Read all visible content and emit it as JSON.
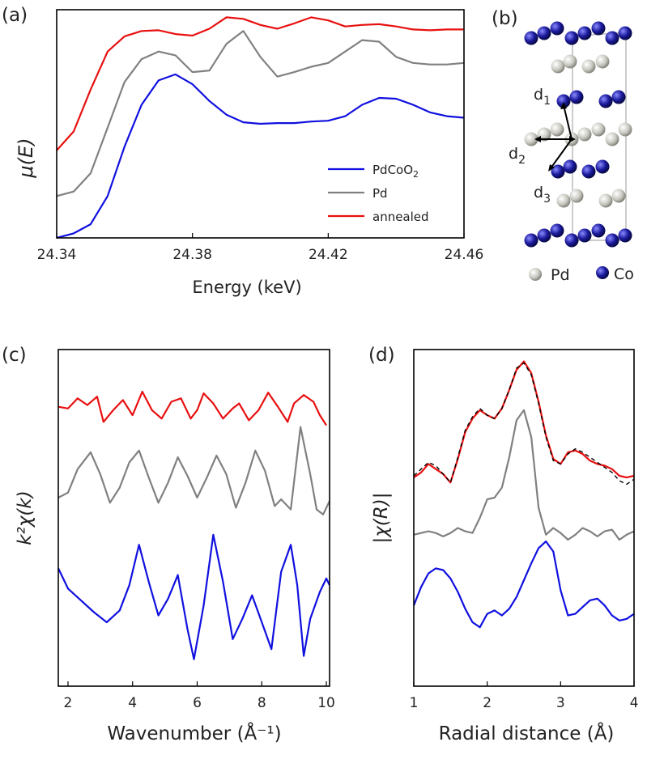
{
  "colors": {
    "PdCoO2": "#1010e0",
    "Pd": "#808080",
    "annealed": "#e81010",
    "fit": "#000000",
    "pd_atom": "#c8c8c0",
    "co_atom": "#1a1a8c"
  },
  "panels": {
    "a": {
      "tag": "(a)"
    },
    "b": {
      "tag": "(b)"
    },
    "c": {
      "tag": "(c)"
    },
    "d": {
      "tag": "(d)"
    }
  },
  "legend": {
    "items": [
      {
        "key": "PdCoO2",
        "label": "PdCoO",
        "sub": "2"
      },
      {
        "key": "Pd",
        "label": "Pd",
        "sub": ""
      },
      {
        "key": "annealed",
        "label": "annealed",
        "sub": ""
      }
    ]
  },
  "structure": {
    "labels": {
      "d1": "d",
      "d1_sub": "1",
      "d2": "d",
      "d2_sub": "2",
      "d3": "d",
      "d3_sub": "3"
    },
    "legend_pd": "Pd",
    "legend_co": "Co"
  },
  "chart_data": [
    {
      "panel": "a",
      "type": "line",
      "xlabel": "Energy (keV)",
      "ylabel": "μ(E)",
      "xlim": [
        24.34,
        24.46
      ],
      "ylim": [
        0,
        3.0
      ],
      "xticks": [
        24.34,
        24.38,
        24.42,
        24.46
      ],
      "xtick_labels": [
        "24.34",
        "24.38",
        "24.42",
        "24.46"
      ],
      "grid": false,
      "legend_position": "lower-right",
      "series": [
        {
          "name": "PdCoO2",
          "key": "PdCoO2",
          "x": [
            24.34,
            24.345,
            24.35,
            24.355,
            24.36,
            24.365,
            24.37,
            24.375,
            24.38,
            24.385,
            24.39,
            24.395,
            24.4,
            24.405,
            24.41,
            24.415,
            24.42,
            24.425,
            24.43,
            24.435,
            24.44,
            24.445,
            24.45,
            24.455,
            24.46
          ],
          "y": [
            0.0,
            0.06,
            0.18,
            0.55,
            1.2,
            1.75,
            2.07,
            2.15,
            2.02,
            1.8,
            1.62,
            1.52,
            1.5,
            1.51,
            1.51,
            1.53,
            1.54,
            1.6,
            1.75,
            1.84,
            1.83,
            1.75,
            1.65,
            1.6,
            1.58
          ]
        },
        {
          "name": "Pd",
          "key": "Pd",
          "x": [
            24.34,
            24.345,
            24.35,
            24.355,
            24.36,
            24.365,
            24.37,
            24.375,
            24.38,
            24.385,
            24.39,
            24.395,
            24.4,
            24.405,
            24.41,
            24.415,
            24.42,
            24.425,
            24.43,
            24.435,
            24.44,
            24.445,
            24.45,
            24.455,
            24.46
          ],
          "y": [
            0.55,
            0.61,
            0.85,
            1.45,
            2.05,
            2.35,
            2.45,
            2.4,
            2.18,
            2.2,
            2.55,
            2.72,
            2.38,
            2.12,
            2.18,
            2.25,
            2.3,
            2.45,
            2.6,
            2.58,
            2.38,
            2.3,
            2.28,
            2.28,
            2.3
          ]
        },
        {
          "name": "annealed",
          "key": "annealed",
          "x": [
            24.34,
            24.345,
            24.35,
            24.355,
            24.36,
            24.365,
            24.37,
            24.375,
            24.38,
            24.385,
            24.39,
            24.395,
            24.4,
            24.405,
            24.41,
            24.415,
            24.42,
            24.425,
            24.43,
            24.435,
            24.44,
            24.445,
            24.45,
            24.455,
            24.46
          ],
          "y": [
            1.15,
            1.4,
            1.95,
            2.45,
            2.65,
            2.72,
            2.73,
            2.68,
            2.66,
            2.75,
            2.9,
            2.88,
            2.8,
            2.75,
            2.82,
            2.9,
            2.86,
            2.78,
            2.8,
            2.81,
            2.78,
            2.74,
            2.73,
            2.74,
            2.74
          ]
        }
      ]
    },
    {
      "panel": "c",
      "type": "line",
      "xlabel": "Wavenumber (Å⁻¹)",
      "ylabel": "k²χ(k)",
      "xlim": [
        1.7,
        10.1
      ],
      "ylim": [
        0,
        10
      ],
      "xticks": [
        2,
        4,
        6,
        8,
        10
      ],
      "xtick_labels": [
        "2",
        "4",
        "6",
        "8",
        "10"
      ],
      "grid": false,
      "series": [
        {
          "key": "annealed",
          "x": [
            1.7,
            2.0,
            2.3,
            2.6,
            2.9,
            3.1,
            3.4,
            3.7,
            4.0,
            4.3,
            4.6,
            4.9,
            5.2,
            5.5,
            5.8,
            6.0,
            6.2,
            6.5,
            6.8,
            7.1,
            7.3,
            7.6,
            7.9,
            8.2,
            8.5,
            8.8,
            9.0,
            9.3,
            9.6,
            9.8,
            10.0
          ],
          "y": [
            8.3,
            8.25,
            8.55,
            8.35,
            8.6,
            7.85,
            8.2,
            8.5,
            8.05,
            8.75,
            8.2,
            7.95,
            8.45,
            8.55,
            7.95,
            8.2,
            8.7,
            8.4,
            7.95,
            8.25,
            8.4,
            7.9,
            8.2,
            8.72,
            8.3,
            7.85,
            8.4,
            8.65,
            8.45,
            8.05,
            7.75
          ]
        },
        {
          "key": "Pd",
          "x": [
            1.7,
            2.0,
            2.3,
            2.7,
            3.0,
            3.3,
            3.6,
            3.9,
            4.2,
            4.5,
            4.8,
            5.1,
            5.4,
            5.7,
            6.0,
            6.3,
            6.6,
            6.9,
            7.2,
            7.5,
            7.8,
            8.1,
            8.4,
            8.6,
            8.9,
            9.2,
            9.5,
            9.7,
            9.9,
            10.1
          ],
          "y": [
            5.6,
            5.75,
            6.45,
            6.95,
            6.3,
            5.45,
            5.9,
            6.65,
            7.0,
            6.2,
            5.45,
            6.05,
            6.8,
            6.25,
            5.6,
            6.2,
            6.85,
            6.3,
            5.3,
            6.05,
            7.0,
            6.4,
            5.35,
            5.55,
            5.25,
            7.7,
            6.3,
            5.25,
            5.1,
            5.5
          ]
        },
        {
          "key": "PdCoO2",
          "x": [
            1.7,
            2.0,
            2.4,
            2.8,
            3.2,
            3.6,
            3.9,
            4.2,
            4.5,
            4.8,
            5.1,
            5.4,
            5.7,
            5.9,
            6.2,
            6.5,
            6.8,
            7.1,
            7.4,
            7.7,
            8.0,
            8.3,
            8.6,
            8.9,
            9.1,
            9.3,
            9.5,
            9.8,
            10.0,
            10.1
          ],
          "y": [
            3.5,
            2.9,
            2.55,
            2.2,
            1.9,
            2.25,
            3.0,
            4.2,
            3.1,
            2.1,
            2.6,
            3.3,
            1.7,
            0.8,
            2.4,
            4.5,
            3.1,
            1.4,
            2.0,
            2.7,
            1.9,
            1.1,
            3.4,
            4.2,
            3.0,
            0.9,
            2.0,
            2.8,
            3.2,
            3.0
          ]
        }
      ]
    },
    {
      "panel": "d",
      "type": "line",
      "xlabel": "Radial distance (Å)",
      "ylabel": "|χ(R)|",
      "xlim": [
        1,
        4
      ],
      "ylim": [
        0,
        10
      ],
      "xticks": [
        1,
        2,
        3,
        4
      ],
      "xtick_labels": [
        "1",
        "2",
        "3",
        "4"
      ],
      "grid": false,
      "series": [
        {
          "key": "annealed",
          "x": [
            1.0,
            1.1,
            1.2,
            1.3,
            1.4,
            1.5,
            1.6,
            1.7,
            1.8,
            1.9,
            2.0,
            2.1,
            2.2,
            2.3,
            2.4,
            2.5,
            2.6,
            2.7,
            2.8,
            2.9,
            3.0,
            3.1,
            3.2,
            3.3,
            3.4,
            3.5,
            3.6,
            3.7,
            3.8,
            3.9,
            4.0
          ],
          "y": [
            6.2,
            6.35,
            6.6,
            6.45,
            6.3,
            6.05,
            6.75,
            7.55,
            7.95,
            8.2,
            8.05,
            7.95,
            8.25,
            8.8,
            9.4,
            9.65,
            9.3,
            8.45,
            7.45,
            6.75,
            6.6,
            6.95,
            7.0,
            6.9,
            6.7,
            6.6,
            6.55,
            6.45,
            6.25,
            6.2,
            6.25
          ]
        },
        {
          "key": "fit",
          "x": [
            1.0,
            1.1,
            1.2,
            1.3,
            1.4,
            1.5,
            1.6,
            1.7,
            1.8,
            1.9,
            2.0,
            2.1,
            2.2,
            2.3,
            2.4,
            2.5,
            2.6,
            2.7,
            2.8,
            2.9,
            3.0,
            3.1,
            3.2,
            3.3,
            3.4,
            3.5,
            3.6,
            3.7,
            3.8,
            3.9,
            4.0
          ],
          "y": [
            6.25,
            6.45,
            6.65,
            6.55,
            6.3,
            6.05,
            6.8,
            7.6,
            8.0,
            8.25,
            8.05,
            7.95,
            8.25,
            8.8,
            9.45,
            9.6,
            9.25,
            8.4,
            7.4,
            6.7,
            6.6,
            6.9,
            7.05,
            6.95,
            6.8,
            6.65,
            6.5,
            6.35,
            6.1,
            6.0,
            6.15
          ]
        },
        {
          "key": "Pd",
          "x": [
            1.0,
            1.1,
            1.2,
            1.3,
            1.4,
            1.5,
            1.6,
            1.7,
            1.8,
            1.9,
            2.0,
            2.1,
            2.2,
            2.3,
            2.4,
            2.5,
            2.6,
            2.7,
            2.8,
            2.9,
            3.0,
            3.1,
            3.2,
            3.3,
            3.4,
            3.5,
            3.6,
            3.7,
            3.8,
            3.9,
            4.0
          ],
          "y": [
            4.5,
            4.55,
            4.6,
            4.55,
            4.45,
            4.55,
            4.7,
            4.6,
            4.55,
            5.0,
            5.55,
            5.6,
            5.9,
            6.8,
            7.9,
            8.2,
            7.4,
            5.3,
            4.5,
            4.7,
            4.55,
            4.35,
            4.5,
            4.7,
            4.6,
            4.45,
            4.6,
            4.65,
            4.35,
            4.5,
            4.6
          ]
        },
        {
          "key": "PdCoO2",
          "x": [
            1.0,
            1.1,
            1.2,
            1.3,
            1.4,
            1.5,
            1.6,
            1.7,
            1.8,
            1.9,
            2.0,
            2.1,
            2.2,
            2.3,
            2.4,
            2.5,
            2.6,
            2.7,
            2.8,
            2.9,
            3.0,
            3.1,
            3.2,
            3.3,
            3.4,
            3.5,
            3.6,
            3.7,
            3.8,
            3.9,
            4.0
          ],
          "y": [
            2.4,
            2.95,
            3.35,
            3.5,
            3.45,
            3.2,
            2.8,
            2.3,
            1.9,
            1.75,
            2.15,
            2.25,
            2.1,
            2.3,
            2.65,
            3.15,
            3.65,
            4.1,
            4.3,
            4.0,
            2.85,
            2.1,
            2.15,
            2.35,
            2.55,
            2.6,
            2.4,
            2.1,
            1.95,
            2.0,
            2.15
          ]
        }
      ]
    }
  ]
}
